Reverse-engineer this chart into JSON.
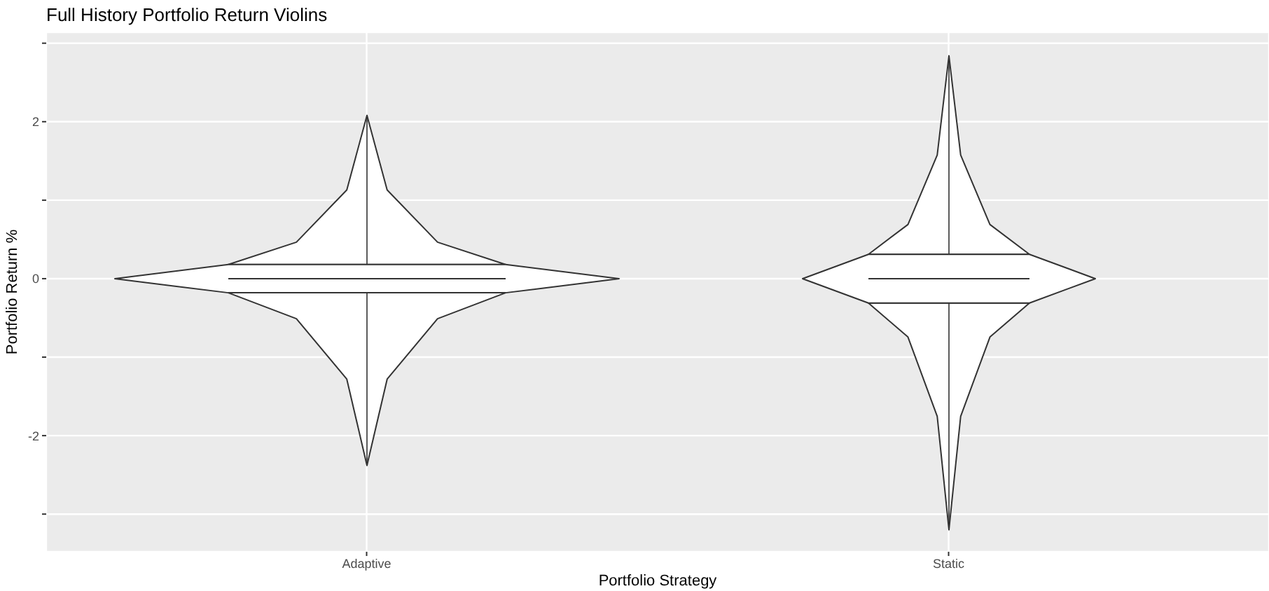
{
  "chart_data": {
    "type": "box",
    "title": "Full History Portfolio Return Violins",
    "xlabel": "Portfolio Strategy",
    "ylabel": "Portfolio Return %",
    "categories": [
      "Adaptive",
      "Static"
    ],
    "boxes": [
      {
        "low": -2.38,
        "q1": -0.18,
        "median": 0,
        "q3": 0.18,
        "high": 2.08
      },
      {
        "low": -3.2,
        "q1": -0.31,
        "median": 0,
        "q3": 0.31,
        "high": 2.84
      }
    ],
    "ylim": [
      -3.48,
      3.14
    ],
    "yticks": [
      {
        "value": -3,
        "label": null
      },
      -2,
      {
        "value": -1,
        "label": null
      },
      0,
      {
        "value": 1,
        "label": null
      },
      2,
      {
        "value": 3,
        "label": null
      }
    ],
    "grid": true
  }
}
